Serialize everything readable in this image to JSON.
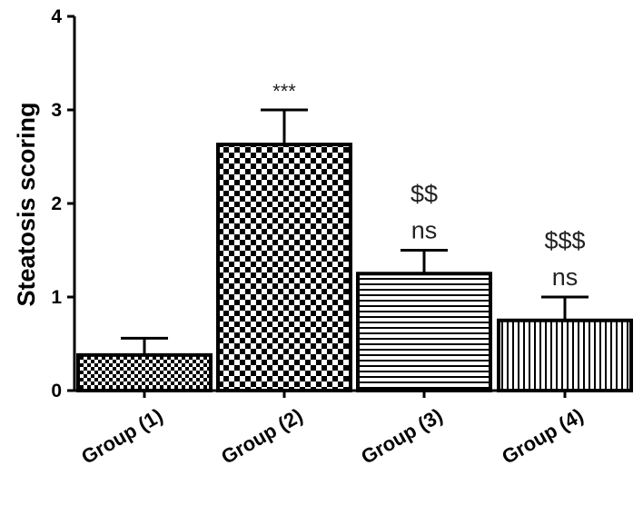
{
  "chart_data": {
    "type": "bar",
    "title": "",
    "xlabel": "",
    "ylabel": "Steatosis scoring",
    "ylim": [
      0,
      4
    ],
    "yticks": [
      "0",
      "1",
      "2",
      "3",
      "4"
    ],
    "categories": [
      "Group (1)",
      "Group (2)",
      "Group (3)",
      "Group (4)"
    ],
    "values": [
      0.38,
      2.63,
      1.25,
      0.75
    ],
    "errors": [
      0.18,
      0.37,
      0.25,
      0.25
    ],
    "patterns": [
      "fine-checker",
      "checker",
      "horizontal-lines",
      "vertical-lines"
    ],
    "annotations": [
      [],
      [
        "***"
      ],
      [
        "$$",
        "ns"
      ],
      [
        "$$$",
        "ns"
      ]
    ],
    "grid": false,
    "legend": "none",
    "colors": {
      "bar_fill_dark": "#000000",
      "bar_fill_light": "#ffffff",
      "axis": "#000000",
      "annotation": "#222222"
    }
  }
}
